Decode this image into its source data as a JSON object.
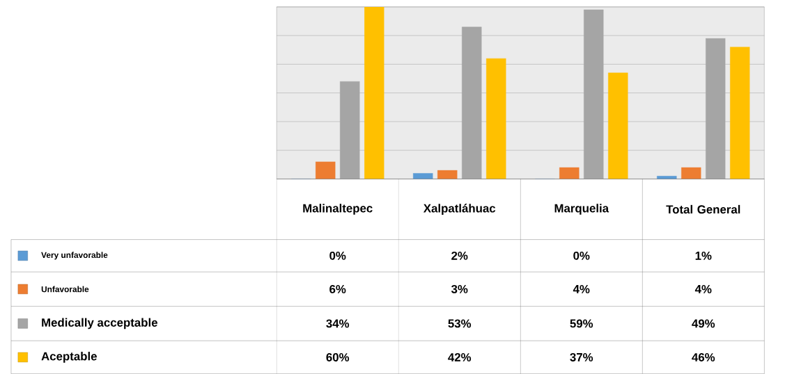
{
  "chart_data": {
    "type": "bar",
    "categories": [
      "Malinaltepec",
      "Xalpatláhuac",
      "Marquelia",
      "Total General"
    ],
    "series": [
      {
        "name": "Very unfavorable",
        "color": "#5b9bd5",
        "values": [
          0,
          2,
          0,
          1
        ],
        "value_labels": [
          "0%",
          "2%",
          "0%",
          "1%"
        ]
      },
      {
        "name": "Unfavorable",
        "color": "#ed7d31",
        "values": [
          6,
          3,
          4,
          4
        ],
        "value_labels": [
          "6%",
          "3%",
          "4%",
          "4%"
        ]
      },
      {
        "name": "Medically acceptable",
        "color": "#a5a5a5",
        "values": [
          34,
          53,
          59,
          49
        ],
        "value_labels": [
          "34%",
          "53%",
          "59%",
          "49%"
        ]
      },
      {
        "name": "Aceptable",
        "color": "#ffc000",
        "values": [
          60,
          42,
          37,
          46
        ],
        "value_labels": [
          "60%",
          "42%",
          "37%",
          "46%"
        ]
      }
    ],
    "ylim": [
      0,
      60
    ],
    "yticks": [
      {
        "value": 0,
        "label": null
      },
      {
        "value": 10,
        "label": null
      },
      {
        "value": 20,
        "label": null
      },
      {
        "value": 30,
        "label": null
      },
      {
        "value": 40,
        "label": null
      },
      {
        "value": 50,
        "label": null
      },
      {
        "value": 60,
        "label": null
      }
    ],
    "grid": "y",
    "legend": "bottom left"
  }
}
